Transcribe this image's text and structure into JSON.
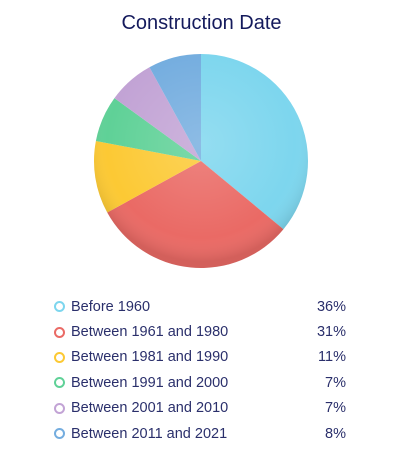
{
  "chart_data": {
    "type": "pie",
    "title": "Construction Date",
    "categories": [
      "Before 1960",
      "Between 1961 and 1980",
      "Between 1981 and 1990",
      "Between 1991 and 2000",
      "Between 2001 and 2010",
      "Between 2011 and 2021"
    ],
    "values": [
      36,
      31,
      11,
      7,
      7,
      8
    ],
    "value_labels": [
      "36%",
      "31%",
      "11%",
      "7%",
      "7%",
      "8%"
    ],
    "colors": [
      "#7dd6ee",
      "#ea6a65",
      "#fcc934",
      "#5fd197",
      "#c2a3d5",
      "#74addf"
    ],
    "legend_position": "bottom"
  }
}
